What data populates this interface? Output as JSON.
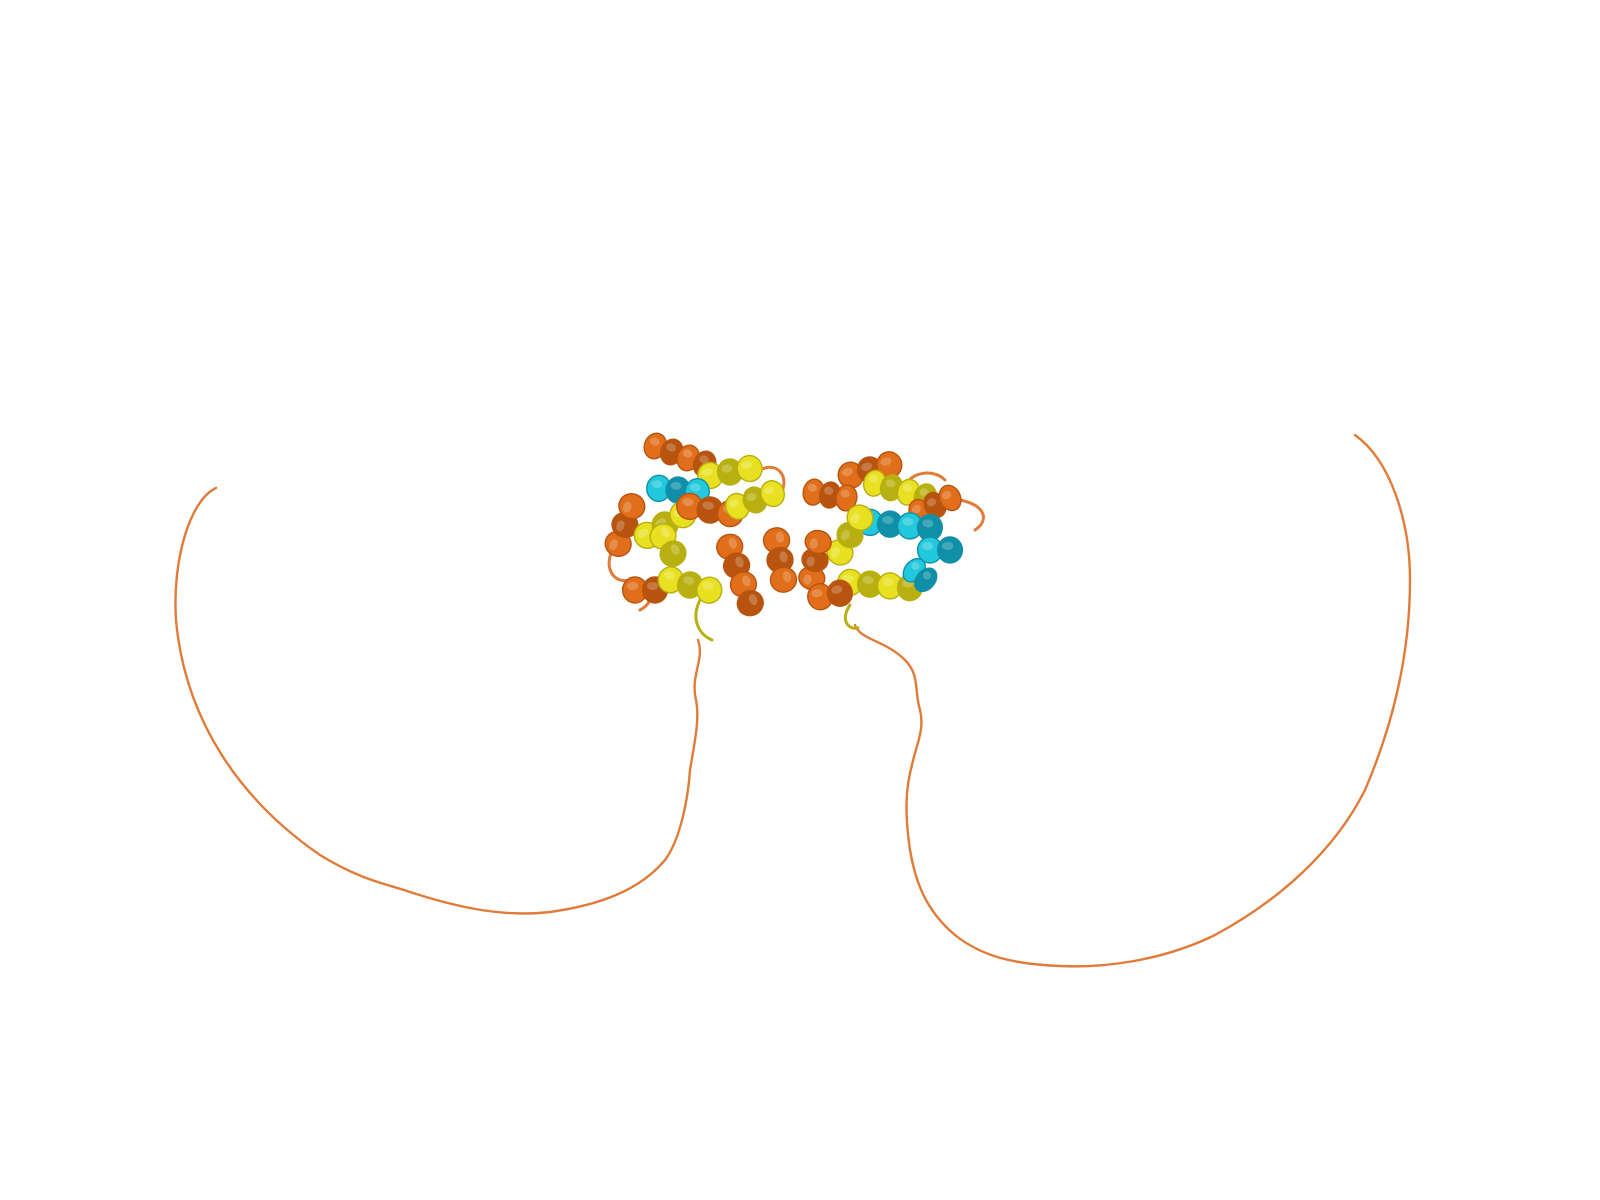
{
  "image": {
    "kind": "protein-structure-cartoon-render",
    "background": "#ffffff",
    "colors": {
      "coil": "#e07b39",
      "helix_orange": "#e06e1a",
      "helix_orange_dark": "#b8540f",
      "helix_yellow": "#e8e020",
      "helix_yellow_dark": "#b8b010",
      "helix_cyan": "#22c8dc",
      "helix_cyan_dark": "#1090a8"
    },
    "components": [
      "left-globular-domain",
      "right-globular-domain",
      "left-disordered-tail",
      "right-disordered-tail"
    ]
  }
}
